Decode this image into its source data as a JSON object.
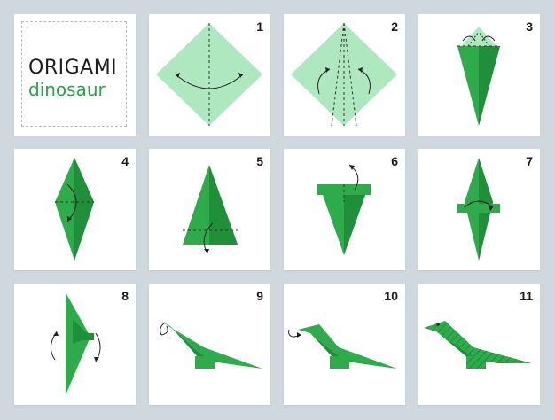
{
  "title": {
    "main": "ORIGAMI",
    "sub": "dinosaur"
  },
  "steps": [
    "1",
    "2",
    "3",
    "4",
    "5",
    "6",
    "7",
    "8",
    "9",
    "10",
    "11"
  ],
  "colors": {
    "paper_light": "#aee8bf",
    "paper_dark": "#1f8f3a",
    "paper_mid": "#2eac4b",
    "background": "#cfd7df"
  }
}
